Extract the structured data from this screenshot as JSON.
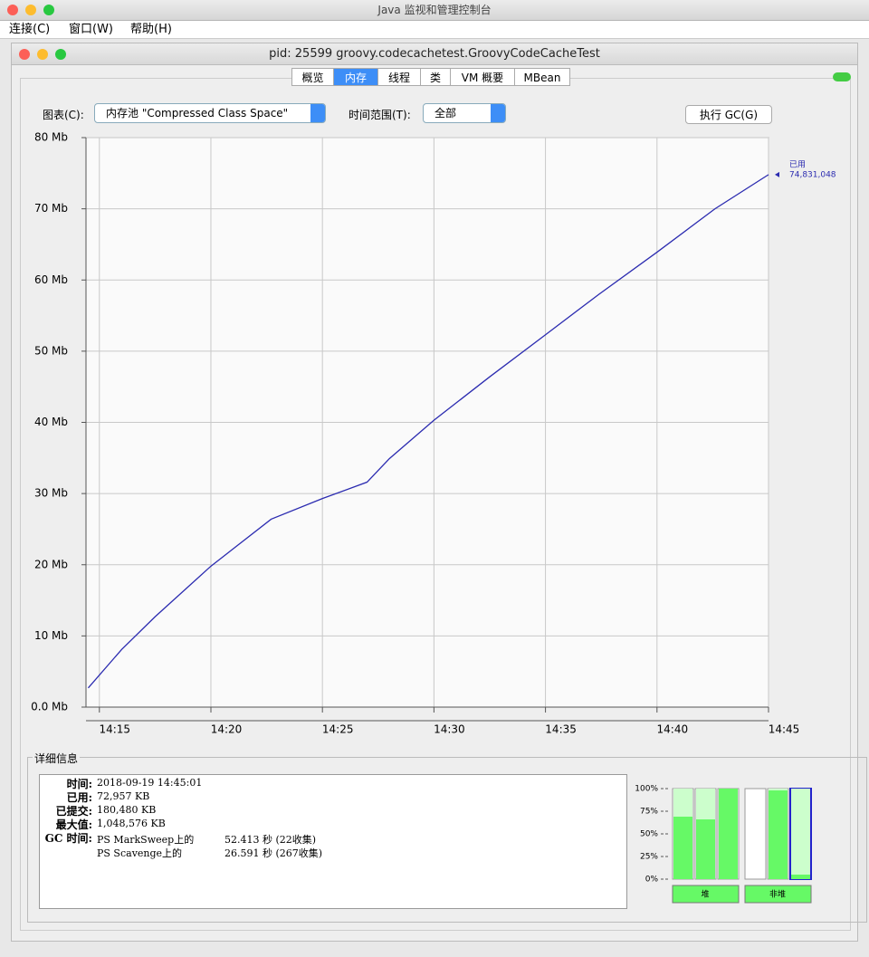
{
  "window_title": "Java 监视和管理控制台",
  "menu": [
    "连接(C)",
    "窗口(W)",
    "帮助(H)"
  ],
  "inner_title": "pid: 25599 groovy.codecachetest.GroovyCodeCacheTest",
  "tabs": [
    "概览",
    "内存",
    "线程",
    "类",
    "VM 概要",
    "MBean"
  ],
  "active_tab": 1,
  "controls": {
    "chart_label": "图表(C):",
    "chart_select": "内存池 \"Compressed Class Space\"",
    "range_label": "时间范围(T):",
    "range_select": "全部",
    "gc_button": "执行 GC(G)"
  },
  "chart_data": {
    "type": "line",
    "x": [
      854.5,
      856,
      857.5,
      860,
      862.7,
      865,
      867,
      868,
      870,
      872.5,
      875,
      877.4,
      880,
      882.6,
      885
    ],
    "series": [
      {
        "name": "已用",
        "color": "#2b2bb0",
        "values": [
          2.7,
          8.1,
          12.7,
          19.8,
          26.4,
          29.3,
          31.6,
          34.9,
          40.3,
          46.4,
          52.3,
          58.0,
          63.9,
          70.0,
          74.8
        ]
      }
    ],
    "current_value_label": "74,831,048",
    "xlim": [
      854.4,
      885
    ],
    "xticks": [
      {
        "value": 855,
        "label": "14:15"
      },
      {
        "value": 860,
        "label": "14:20"
      },
      {
        "value": 865,
        "label": "14:25"
      },
      {
        "value": 870,
        "label": "14:30"
      },
      {
        "value": 875,
        "label": "14:35"
      },
      {
        "value": 880,
        "label": "14:40"
      },
      {
        "value": 885,
        "label": "14:45"
      }
    ],
    "ylim": [
      0,
      80
    ],
    "yticks": [
      {
        "value": 0,
        "label": "0.0 Mb"
      },
      {
        "value": 10,
        "label": "10 Mb"
      },
      {
        "value": 20,
        "label": "20 Mb"
      },
      {
        "value": 30,
        "label": "30 Mb"
      },
      {
        "value": 40,
        "label": "40 Mb"
      },
      {
        "value": 50,
        "label": "50 Mb"
      },
      {
        "value": 60,
        "label": "60 Mb"
      },
      {
        "value": 70,
        "label": "70 Mb"
      },
      {
        "value": 80,
        "label": "80 Mb"
      }
    ],
    "grid": true
  },
  "details": {
    "title": "详细信息",
    "rows": [
      [
        "时间:",
        "2018-09-19 14:45:01"
      ],
      [
        "已用:",
        "72,957 KB"
      ],
      [
        "已提交:",
        "180,480 KB"
      ],
      [
        "最大值:",
        "1,048,576 KB"
      ]
    ],
    "gc_label": "GC 时间:",
    "gc": [
      [
        "PS MarkSweep上的",
        "52.413 秒 (22收集)"
      ],
      [
        "PS Scavenge上的",
        "26.591 秒 (267收集)"
      ]
    ]
  },
  "pool_bars": {
    "ticks": [
      {
        "value": 100,
        "label": "100%"
      },
      {
        "value": 75,
        "label": "75%"
      },
      {
        "value": 50,
        "label": "50%"
      },
      {
        "value": 25,
        "label": "25%"
      },
      {
        "value": 0,
        "label": "0%"
      }
    ],
    "groups": [
      {
        "name": "堆",
        "used": [
          69,
          66,
          100
        ],
        "committed": [
          100,
          100,
          100
        ]
      },
      {
        "name": "非堆",
        "used": [
          0,
          98,
          5
        ],
        "committed": [
          0,
          100,
          100
        ]
      }
    ],
    "selected_group": 1,
    "selected_bar": 2
  }
}
